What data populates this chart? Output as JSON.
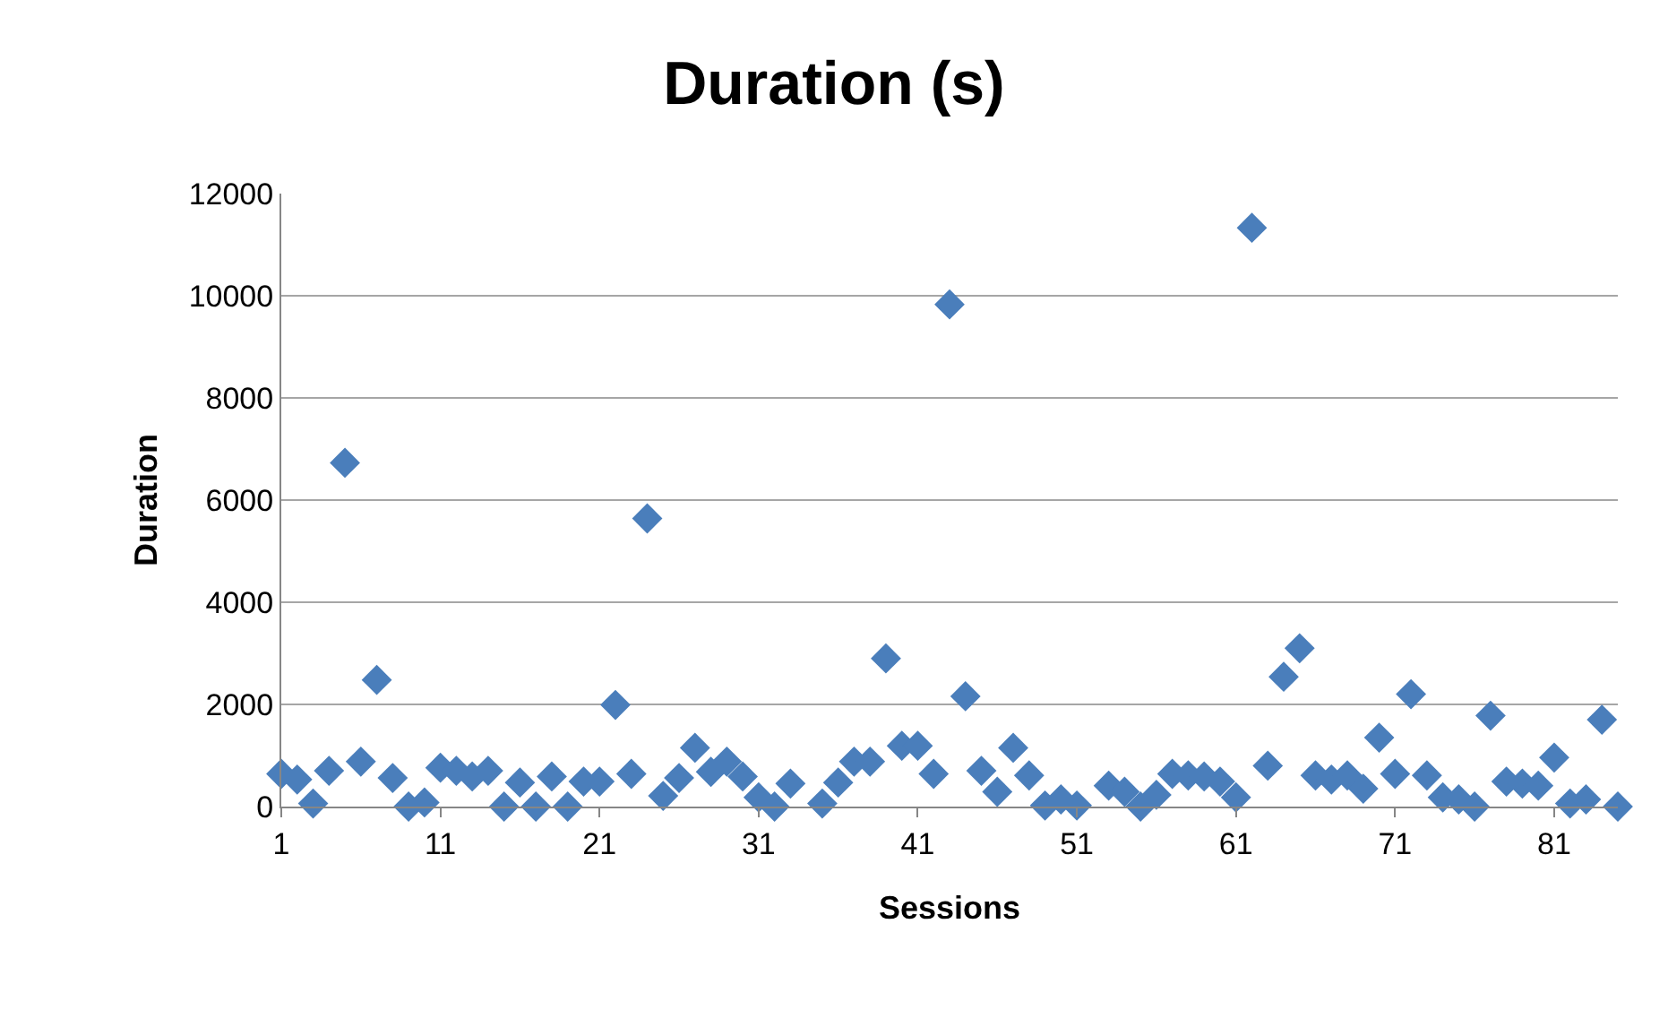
{
  "chart_data": {
    "type": "scatter",
    "title": "Duration (s)",
    "xlabel": "Sessions",
    "ylabel": "Duration",
    "x": [
      1,
      2,
      3,
      4,
      5,
      6,
      7,
      8,
      9,
      10,
      11,
      12,
      13,
      14,
      15,
      16,
      17,
      18,
      19,
      20,
      21,
      22,
      23,
      24,
      25,
      26,
      27,
      28,
      29,
      30,
      31,
      32,
      33,
      34,
      35,
      36,
      37,
      38,
      39,
      40,
      41,
      42,
      43,
      44,
      45,
      46,
      47,
      48,
      49,
      50,
      51,
      52,
      53,
      54,
      55,
      56,
      57,
      58,
      59,
      60,
      61,
      62,
      63,
      64,
      65,
      66,
      67,
      68,
      69,
      70,
      71,
      72,
      73,
      74,
      75,
      76,
      77,
      78,
      79,
      80,
      81,
      82,
      83,
      84,
      85
    ],
    "series": [
      {
        "color": "#4a7ebb",
        "values": [
          640,
          530,
          60,
          700,
          6730,
          880,
          2480,
          560,
          0,
          80,
          760,
          700,
          590,
          700,
          0,
          470,
          0,
          590,
          0,
          490,
          490,
          1990,
          640,
          5640,
          210,
          560,
          1150,
          680,
          880,
          590,
          180,
          0,
          450,
          null,
          60,
          470,
          880,
          880,
          2900,
          1190,
          1190,
          640,
          9830,
          2160,
          700,
          290,
          1150,
          610,
          20,
          140,
          20,
          null,
          410,
          290,
          0,
          230,
          640,
          610,
          590,
          490,
          180,
          11330,
          800,
          2540,
          3100,
          610,
          530,
          610,
          350,
          1350,
          640,
          2200,
          610,
          180,
          140,
          0,
          1780,
          490,
          450,
          410,
          960,
          60,
          140,
          1700,
          0
        ]
      }
    ],
    "xlim": [
      1,
      85
    ],
    "xticks": [
      1,
      11,
      21,
      31,
      41,
      51,
      61,
      71,
      81
    ],
    "ylim": [
      0,
      12000
    ],
    "yticks": [
      0,
      2000,
      4000,
      6000,
      8000,
      10000,
      12000
    ],
    "grid": "y",
    "marker": "diamond"
  }
}
